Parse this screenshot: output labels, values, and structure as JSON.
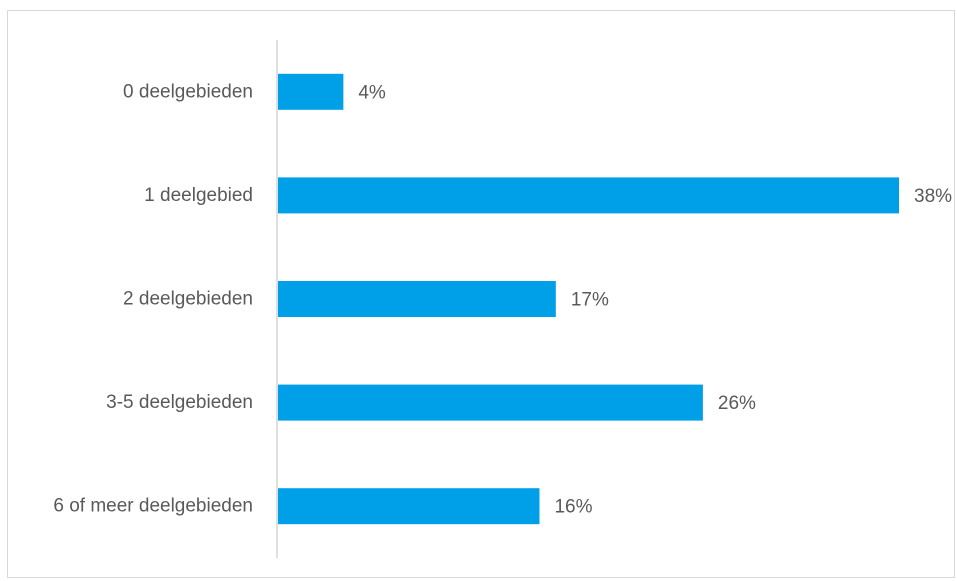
{
  "chart_data": {
    "type": "bar",
    "orientation": "horizontal",
    "categories": [
      "0 deelgebieden",
      "1 deelgebied",
      "2 deelgebieden",
      "3-5  deelgebieden",
      "6 of meer deelgebieden"
    ],
    "values": [
      4,
      38,
      17,
      26,
      16
    ],
    "value_labels": [
      "4%",
      "38%",
      "17%",
      "26%",
      "16%"
    ],
    "unit": "%",
    "title": "",
    "xlabel": "",
    "ylabel": "",
    "xlim": [
      0,
      38
    ],
    "grid": false,
    "legend": "none",
    "bar_color": "#00a0e9",
    "axis_color": "#bfbfbf",
    "text_color": "#595959"
  }
}
